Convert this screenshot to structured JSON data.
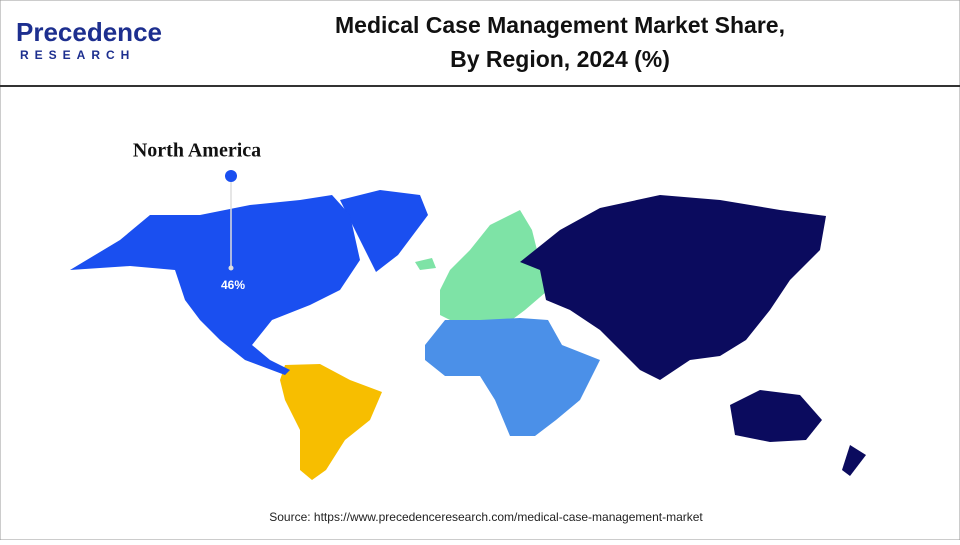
{
  "header": {
    "logo_name": "Precedence",
    "logo_sub": "RESEARCH",
    "title": [
      "Medical Case Management Market Share,",
      "By Region, 2024 (%)"
    ]
  },
  "map": {
    "regions": [
      {
        "name": "North America",
        "value": 46,
        "value_label": "46%",
        "color": "#1a4ff0"
      }
    ]
  },
  "source": "Source: https://www.precedenceresearch.com/medical-case-management-market"
}
